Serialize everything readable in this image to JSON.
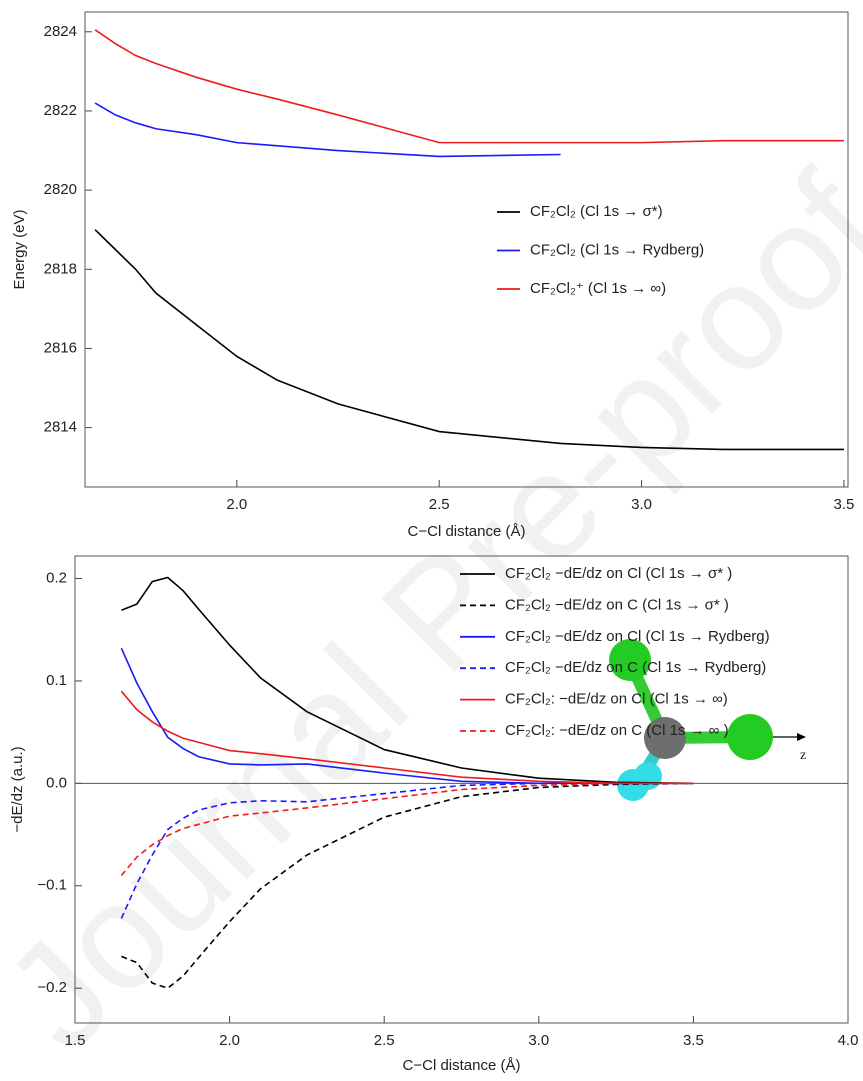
{
  "watermark": "Journal Pre-proof",
  "chart_data": [
    {
      "type": "line",
      "xlabel": "C−Cl distance (Å)",
      "ylabel": "Energy (eV)",
      "xlim": [
        1.625,
        3.51
      ],
      "ylim": [
        2812.5,
        2824.5
      ],
      "xticks": [
        {
          "value": 2,
          "label": "2.0"
        },
        2.5,
        {
          "value": 3,
          "label": "3.0"
        },
        3.5
      ],
      "yticks": [
        2814,
        2816,
        2818,
        2820,
        2822,
        2824
      ],
      "series": [
        {
          "name": "CF₂Cl₂ (Cl 1s → σ*)",
          "color": "#000000",
          "x": [
            1.65,
            1.7,
            1.75,
            1.8,
            1.9,
            2.0,
            2.1,
            2.25,
            2.5,
            2.8,
            3.0,
            3.2,
            3.5
          ],
          "values": [
            2819.0,
            2818.5,
            2818.0,
            2817.4,
            2816.6,
            2815.8,
            2815.2,
            2814.6,
            2813.9,
            2813.6,
            2813.5,
            2813.45,
            2813.45
          ]
        },
        {
          "name": "CF₂Cl₂ (Cl 1s → Rydberg)",
          "color": "#1a1aff",
          "x": [
            1.65,
            1.7,
            1.75,
            1.8,
            1.9,
            2.0,
            2.25,
            2.5,
            2.8
          ],
          "values": [
            2822.2,
            2821.9,
            2821.7,
            2821.55,
            2821.4,
            2821.2,
            2821.0,
            2820.85,
            2820.9
          ]
        },
        {
          "name": "CF₂Cl₂⁺ (Cl 1s → ∞)",
          "color": "#ee1c1c",
          "x": [
            1.65,
            1.7,
            1.75,
            1.8,
            1.9,
            2.0,
            2.1,
            2.25,
            2.5,
            2.8,
            3.0,
            3.2,
            3.5
          ],
          "values": [
            2824.05,
            2823.7,
            2823.4,
            2823.2,
            2822.85,
            2822.55,
            2822.3,
            2821.9,
            2821.2,
            2821.2,
            2821.2,
            2821.25,
            2821.25
          ]
        }
      ]
    },
    {
      "type": "line",
      "xlabel": "C−Cl distance (Å)",
      "ylabel": "−dE/dz (a.u.)",
      "annotation": "z",
      "reference_line": 0,
      "xlim": [
        1.5,
        4.0
      ],
      "ylim": [
        -0.234,
        0.222
      ],
      "xticks": [
        1.5,
        {
          "value": 2,
          "label": "2.0"
        },
        2.5,
        {
          "value": 3,
          "label": "3.0"
        },
        3.5,
        {
          "value": 4,
          "label": "4.0"
        }
      ],
      "yticks": [
        {
          "value": -0.2,
          "label": "−0.2"
        },
        {
          "value": -0.1,
          "label": "−0.1"
        },
        {
          "value": 0,
          "label": "0.0"
        },
        0.1,
        0.2
      ],
      "x": [
        1.65,
        1.7,
        1.75,
        1.8,
        1.85,
        1.9,
        2.0,
        2.1,
        2.25,
        2.5,
        2.75,
        3.0,
        3.25,
        3.5
      ],
      "series": [
        {
          "name": "CF₂Cl₂ −dE/dz on Cl (Cl 1s → σ* )",
          "color": "#000000",
          "dashed": false,
          "values": [
            0.169,
            0.175,
            0.197,
            0.201,
            0.188,
            0.17,
            0.135,
            0.103,
            0.07,
            0.033,
            0.015,
            0.005,
            0.001,
            0.0
          ]
        },
        {
          "name": "CF₂Cl₂ −dE/dz on C (Cl 1s → σ* )",
          "color": "#000000",
          "dashed": true,
          "values": [
            -0.169,
            -0.175,
            -0.195,
            -0.2,
            -0.188,
            -0.17,
            -0.135,
            -0.103,
            -0.07,
            -0.033,
            -0.013,
            -0.004,
            -0.001,
            0.0
          ]
        },
        {
          "name": "CF₂Cl₂ −dE/dz on Cl (Cl 1s → Rydberg)",
          "color": "#1a1aff",
          "dashed": false,
          "values": [
            0.132,
            0.098,
            0.07,
            0.045,
            0.034,
            0.026,
            0.019,
            0.018,
            0.019,
            0.01,
            0.002,
            0.0,
            0.0,
            0.0
          ]
        },
        {
          "name": "CF₂Cl₂ −dE/dz on C (Cl 1s → Rydberg)",
          "color": "#1a1aff",
          "dashed": true,
          "values": [
            -0.132,
            -0.098,
            -0.07,
            -0.045,
            -0.034,
            -0.026,
            -0.019,
            -0.017,
            -0.018,
            -0.01,
            -0.002,
            0.0,
            0.0,
            0.0
          ]
        },
        {
          "name": "CF₂Cl₂: −dE/dz on Cl (Cl 1s → ∞)",
          "color": "#ee1c1c",
          "dashed": false,
          "values": [
            0.09,
            0.072,
            0.06,
            0.051,
            0.044,
            0.04,
            0.032,
            0.029,
            0.024,
            0.015,
            0.006,
            0.002,
            0.0,
            0.0
          ]
        },
        {
          "name": "CF₂Cl₂: −dE/dz on C (Cl 1s → ∞ )",
          "color": "#ee1c1c",
          "dashed": true,
          "values": [
            -0.09,
            -0.072,
            -0.06,
            -0.051,
            -0.044,
            -0.04,
            -0.032,
            -0.029,
            -0.024,
            -0.015,
            -0.006,
            -0.002,
            0.0,
            0.0
          ]
        }
      ]
    }
  ]
}
